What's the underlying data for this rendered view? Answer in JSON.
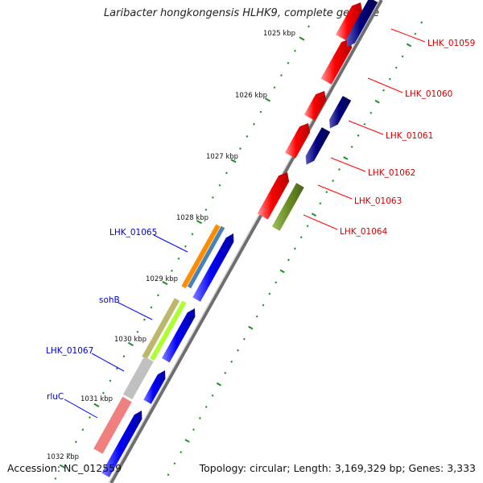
{
  "title": "Laribacter hongkongensis HLHK9, complete genome",
  "accession": "Accession: NC_012559",
  "topology": "Topology: circular; Length: 3,169,329 bp; Genes: 3,333",
  "kbp_labels": [
    "1025 kbp",
    "1026 kbp",
    "1027 kbp",
    "1028 kbp",
    "1029 kbp",
    "1030 kbp",
    "1031 kbp",
    "1032 kbp"
  ],
  "gene_labels_right": [
    "LHK_01059",
    "LHK_01060",
    "LHK_01061",
    "LHK_01062",
    "LHK_01063",
    "LHK_01064"
  ],
  "gene_labels_left": [
    "LHK_01065",
    "sohB",
    "LHK_01067",
    "rluC"
  ],
  "colors": {
    "forward_strand_red": "#ff0000",
    "reverse_strand_navy": "#000080",
    "strand_blue": "#0000ff",
    "olive": "#6b8e23",
    "orange": "#ff8c00",
    "steelblue": "#4682b4",
    "khaki": "#bdb76b",
    "greenyellow": "#adff2f",
    "silver": "#c0c0c0",
    "pink": "#f08080",
    "tick_green": "#228b22",
    "label_red": "#cc0000",
    "label_blue": "#0000cc"
  }
}
